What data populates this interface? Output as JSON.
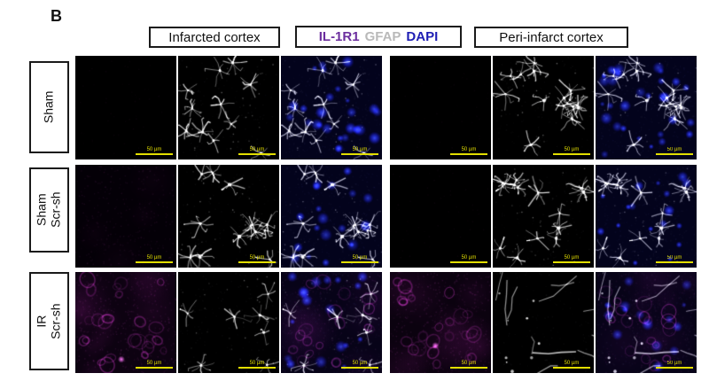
{
  "panel_label": "B",
  "column_headers": {
    "infarcted": "Infarcted cortex",
    "channels": {
      "il1r1": "IL-1R1",
      "gfap": "GFAP",
      "dapi": "DAPI"
    },
    "peri": "Peri-infarct cortex"
  },
  "row_labels": {
    "sham": {
      "line1": "Sham",
      "line2": ""
    },
    "sham_scr": {
      "line1": "Sham",
      "line2": "Scr-sh"
    },
    "ir_scr": {
      "line1": "IR",
      "line2": "Scr-sh"
    }
  },
  "channel_colors": {
    "il1r1": "#6b2e9e",
    "gfap": "#b9b9b9",
    "dapi": "#1e1eb4"
  },
  "scale_bar": {
    "label": "50 µm",
    "color": "#e3df00"
  },
  "grid": {
    "rows": [
      "Sham",
      "Sham Scr-sh",
      "IR Scr-sh"
    ],
    "regions": [
      "Infarcted cortex",
      "Peri-infarct cortex"
    ],
    "channels_per_region": [
      "IL-1R1",
      "GFAP",
      "IL-1R1+GFAP+DAPI merge"
    ],
    "cells": [
      {
        "row": "Sham",
        "region": "Infarcted cortex",
        "channel": "IL-1R1",
        "render": {
          "type": "il1r1",
          "level": 0,
          "seed": 11,
          "base": "#000000"
        }
      },
      {
        "row": "Sham",
        "region": "Infarcted cortex",
        "channel": "GFAP",
        "render": {
          "type": "gfap",
          "style": "star",
          "n": 11,
          "seed": 21,
          "base": "#000000"
        }
      },
      {
        "row": "Sham",
        "region": "Infarcted cortex",
        "channel": "merge",
        "render": {
          "type": "merge",
          "nuclei": 26,
          "astroSeed": 21,
          "astroStyle": "star",
          "astroN": 11,
          "seed": 31,
          "base": "#03031c"
        }
      },
      {
        "row": "Sham",
        "region": "Peri-infarct cortex",
        "channel": "IL-1R1",
        "render": {
          "type": "il1r1",
          "level": 0,
          "seed": 41,
          "base": "#000000"
        }
      },
      {
        "row": "Sham",
        "region": "Peri-infarct cortex",
        "channel": "GFAP",
        "render": {
          "type": "gfap",
          "style": "star",
          "n": 14,
          "seed": 51,
          "base": "#000000"
        }
      },
      {
        "row": "Sham",
        "region": "Peri-infarct cortex",
        "channel": "merge",
        "render": {
          "type": "merge",
          "nuclei": 30,
          "astroSeed": 51,
          "astroStyle": "star",
          "astroN": 14,
          "seed": 61,
          "base": "#03031c"
        }
      },
      {
        "row": "Sham Scr-sh",
        "region": "Infarcted cortex",
        "channel": "IL-1R1",
        "render": {
          "type": "il1r1",
          "level": 1,
          "seed": 71,
          "base": "#040007"
        }
      },
      {
        "row": "Sham Scr-sh",
        "region": "Infarcted cortex",
        "channel": "GFAP",
        "render": {
          "type": "gfap",
          "style": "star",
          "n": 12,
          "seed": 81,
          "base": "#000000"
        }
      },
      {
        "row": "Sham Scr-sh",
        "region": "Infarcted cortex",
        "channel": "merge",
        "render": {
          "type": "merge",
          "nuclei": 19,
          "astroSeed": 81,
          "astroStyle": "star",
          "astroN": 12,
          "seed": 91,
          "base": "#03031c"
        }
      },
      {
        "row": "Sham Scr-sh",
        "region": "Peri-infarct cortex",
        "channel": "IL-1R1",
        "render": {
          "type": "il1r1",
          "level": 0,
          "seed": 101,
          "base": "#000000"
        }
      },
      {
        "row": "Sham Scr-sh",
        "region": "Peri-infarct cortex",
        "channel": "GFAP",
        "render": {
          "type": "gfap",
          "style": "star",
          "n": 13,
          "seed": 111,
          "base": "#000000"
        }
      },
      {
        "row": "Sham Scr-sh",
        "region": "Peri-infarct cortex",
        "channel": "merge",
        "render": {
          "type": "merge",
          "nuclei": 17,
          "astroSeed": 111,
          "astroStyle": "star",
          "astroN": 13,
          "seed": 121,
          "base": "#03031c"
        }
      },
      {
        "row": "IR Scr-sh",
        "region": "Infarcted cortex",
        "channel": "IL-1R1",
        "render": {
          "type": "il1r1",
          "level": 2,
          "seed": 131,
          "base": "#0d0211"
        }
      },
      {
        "row": "IR Scr-sh",
        "region": "Infarcted cortex",
        "channel": "GFAP",
        "render": {
          "type": "gfap",
          "style": "star",
          "n": 7,
          "dim": 0.85,
          "seed": 141,
          "base": "#000000"
        }
      },
      {
        "row": "IR Scr-sh",
        "region": "Infarcted cortex",
        "channel": "merge",
        "render": {
          "type": "merge",
          "magenta": true,
          "nuclei": 18,
          "astroSeed": 141,
          "astroStyle": "star",
          "astroN": 7,
          "seed": 151,
          "base": "#070318"
        }
      },
      {
        "row": "IR Scr-sh",
        "region": "Peri-infarct cortex",
        "channel": "IL-1R1",
        "render": {
          "type": "il1r1",
          "level": 2,
          "seed": 161,
          "base": "#0b020f"
        }
      },
      {
        "row": "IR Scr-sh",
        "region": "Peri-infarct cortex",
        "channel": "GFAP",
        "render": {
          "type": "gfap",
          "style": "streak",
          "n": 12,
          "seed": 171,
          "base": "#000000"
        }
      },
      {
        "row": "IR Scr-sh",
        "region": "Peri-infarct cortex",
        "channel": "merge",
        "render": {
          "type": "merge",
          "magenta": true,
          "nuclei": 15,
          "astroSeed": 171,
          "astroStyle": "streak",
          "astroN": 12,
          "seed": 181,
          "base": "#070318"
        }
      }
    ]
  }
}
